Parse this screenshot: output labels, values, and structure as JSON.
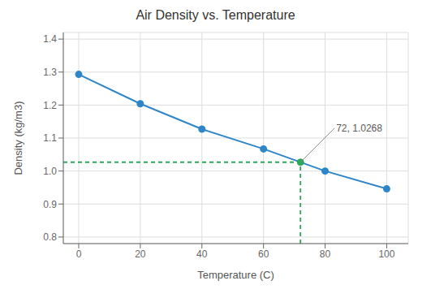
{
  "chart_data": {
    "type": "line",
    "title": "Air Density vs. Temperature",
    "x_label": "Temperature (C)",
    "y_label": "Density (kg/m3)",
    "x": [
      0,
      20,
      40,
      60,
      80,
      100
    ],
    "values": [
      1.293,
      1.204,
      1.127,
      1.067,
      1.0,
      0.946
    ],
    "color": "#2E86C8",
    "marker": "circle",
    "xlim": [
      -5,
      107
    ],
    "ylim": [
      0.78,
      1.42
    ],
    "xticks": [
      0,
      20,
      40,
      60,
      80,
      100
    ],
    "yticks": [
      0.8,
      0.9,
      {
        "value": 1.0,
        "label": "1.0"
      },
      1.1,
      1.2,
      1.3,
      1.4
    ],
    "grid": true,
    "annotations": [
      {
        "text": "72, 1.0268",
        "x": 72,
        "y": 1.0268,
        "color": "#2CA85A"
      }
    ]
  }
}
